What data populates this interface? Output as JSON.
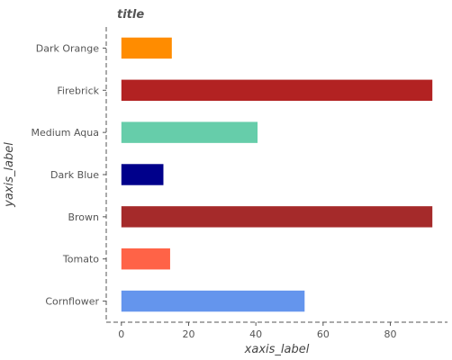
{
  "chart_data": {
    "type": "bar",
    "orientation": "horizontal",
    "title": "title",
    "xlabel": "xaxis_label",
    "ylabel": "yaxis_label",
    "categories": [
      "Cornflower",
      "Tomato",
      "Brown",
      "Dark Blue",
      "Medium Aqua",
      "Firebrick",
      "Dark Orange"
    ],
    "values": [
      54.5,
      14.5,
      92.5,
      12.5,
      40.5,
      92.5,
      15
    ],
    "colors": [
      "#6495ED",
      "#FF6347",
      "#A52A2A",
      "#00008B",
      "#66CDAA",
      "#B22222",
      "#FF8C00"
    ],
    "xlim": [
      -4.5,
      97
    ],
    "xticks": [
      0,
      20,
      40,
      60,
      80
    ],
    "grid": false,
    "legend": "none"
  }
}
